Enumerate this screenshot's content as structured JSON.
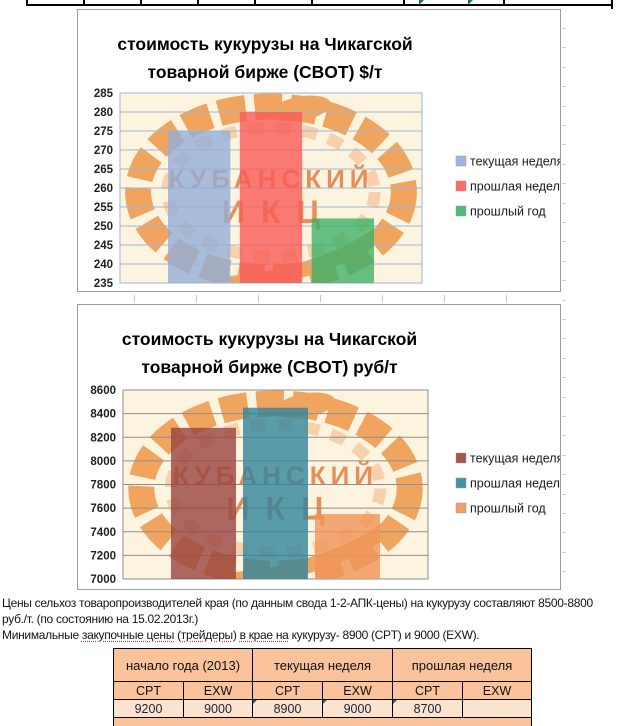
{
  "charts_watermark": {
    "line1": "КУБАНСКИЙ",
    "line2": "ИКЦ",
    "wreath_color": "#F0A058",
    "wreath_color_light": "#F6C9A0",
    "text_color": "#E26E33"
  },
  "chart_data": [
    {
      "type": "bar",
      "title": "стоимость кукурузы на Чикагской товарной бирже (CBOT) $/т",
      "title_lines": [
        "стоимость кукурузы на Чикагской",
        "товарной бирже (CBOT) $/т"
      ],
      "series": [
        {
          "name": "текущая неделя",
          "value": 275,
          "color": "#94AED8"
        },
        {
          "name": "прошлая неделя",
          "value": 280,
          "color": "#F95B57"
        },
        {
          "name": "прошлый год",
          "value": 252,
          "color": "#3DB268"
        }
      ],
      "ylim": [
        235,
        285
      ],
      "ytick_step": 5,
      "grid": true,
      "legend_position": "right",
      "plot_bg": "#FCF4DE",
      "grid_color": "#9FB3D9"
    },
    {
      "type": "bar",
      "title": "стоимость кукурузы на Чикагской товарной бирже (CBOT) руб/т",
      "title_lines": [
        "стоимость кукурузы на Чикагской",
        "товарной бирже (CBOT) руб/т"
      ],
      "series": [
        {
          "name": "текущая неделя",
          "value": 8280,
          "color": "#9A4440"
        },
        {
          "name": "прошлая неделя",
          "value": 8450,
          "color": "#31859C"
        },
        {
          "name": "прошлый год",
          "value": 7550,
          "color": "#F09559"
        }
      ],
      "ylim": [
        7000,
        8600
      ],
      "ytick_step": 200,
      "grid": true,
      "legend_position": "right",
      "plot_bg": "#FCF4DE",
      "grid_color": "#8E8E8E"
    }
  ],
  "notes": {
    "line1": "Цены сельхоз товаропроизводителей края (по данным свода 1-2-АПК-цены) на кукурузу составляют 8500-8800",
    "line2": "руб./т. (по состоянию на 15.02.2013г.)",
    "line3": {
      "p0": "Минимальные ",
      "p1": "закупочные цены",
      "p2": " (",
      "p3": "трейдеры",
      "p4": ") ",
      "p5": "в крае на",
      "p6": " кукурузу- 8900 (CPT) и 9000 (EXW)."
    }
  },
  "table": {
    "groups": [
      "начало года (2013)",
      "текущая неделя",
      "прошлая неделя"
    ],
    "subheaders": [
      "CPT",
      "EXW",
      "CPT",
      "EXW",
      "CPT",
      "EXW"
    ],
    "values": [
      "9200",
      "9000",
      "8900",
      "9000",
      "8700",
      ""
    ],
    "error_indicators": [
      false,
      false,
      true,
      true,
      true,
      false
    ],
    "header_bg": "#FAC39B",
    "value_bg": "#FBE3CF",
    "border_color": "#000000",
    "indicator_color": "#1E7A3C"
  }
}
